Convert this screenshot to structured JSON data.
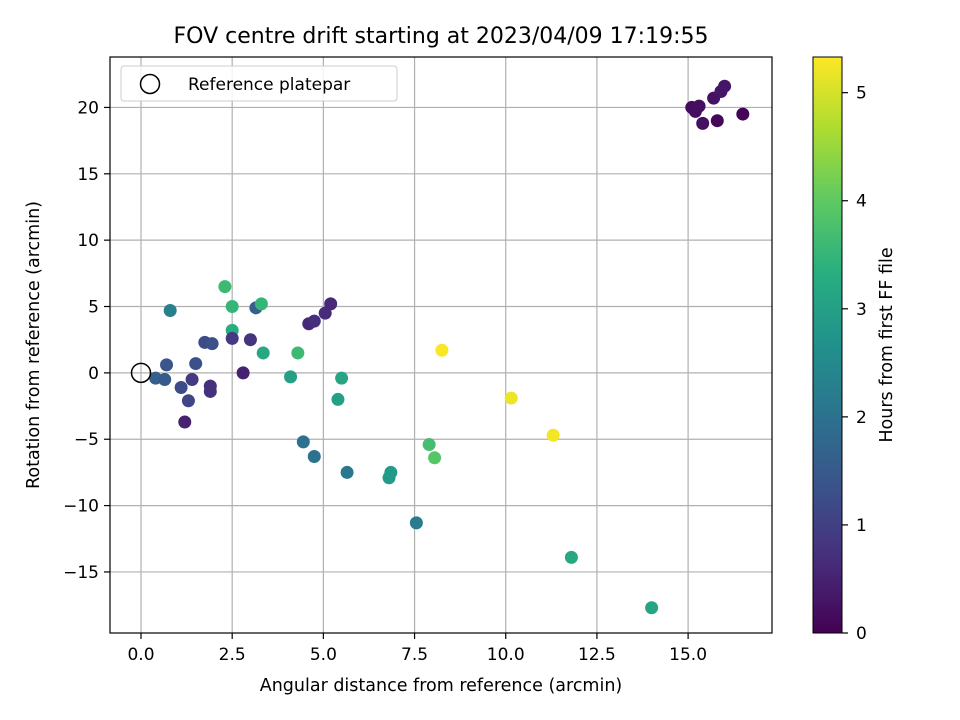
{
  "chart_data": {
    "type": "scatter",
    "title": "FOV centre drift starting at 2023/04/09 17:19:55",
    "xlabel": "Angular distance from reference (arcmin)",
    "ylabel": "Rotation from reference (arcmin)",
    "xlim": [
      -0.85,
      17.3
    ],
    "ylim": [
      -19.6,
      23.8
    ],
    "xticks": [
      0.0,
      2.5,
      5.0,
      7.5,
      10.0,
      12.5,
      15.0
    ],
    "xtick_labels": [
      "0.0",
      "2.5",
      "5.0",
      "7.5",
      "10.0",
      "12.5",
      "15.0"
    ],
    "yticks": [
      -15,
      -10,
      -5,
      0,
      5,
      10,
      15,
      20
    ],
    "ytick_labels": [
      "−15",
      "−10",
      "−5",
      "0",
      "5",
      "10",
      "15",
      "20"
    ],
    "grid": true,
    "legend": {
      "placement": "upper-left",
      "entries": [
        "Reference platepar"
      ]
    },
    "reference_point": {
      "x": 0.0,
      "y": 0.0
    },
    "colorbar": {
      "label": "Hours from first FF file",
      "colormap": "viridis",
      "range": [
        0,
        5.33
      ],
      "ticks": [
        0,
        1,
        2,
        3,
        4,
        5
      ],
      "tick_labels": [
        "0",
        "1",
        "2",
        "3",
        "4",
        "5"
      ]
    },
    "points": [
      {
        "x": 15.1,
        "y": 20.0,
        "c": 0.15
      },
      {
        "x": 15.2,
        "y": 19.7,
        "c": 0.18
      },
      {
        "x": 15.3,
        "y": 20.1,
        "c": 0.2
      },
      {
        "x": 15.4,
        "y": 18.8,
        "c": 0.22
      },
      {
        "x": 15.7,
        "y": 20.7,
        "c": 0.25
      },
      {
        "x": 15.8,
        "y": 19.0,
        "c": 0.1
      },
      {
        "x": 15.9,
        "y": 21.2,
        "c": 0.3
      },
      {
        "x": 16.0,
        "y": 21.6,
        "c": 0.32
      },
      {
        "x": 16.5,
        "y": 19.5,
        "c": 0.05
      },
      {
        "x": 0.4,
        "y": -0.4,
        "c": 1.6
      },
      {
        "x": 0.65,
        "y": -0.5,
        "c": 1.5
      },
      {
        "x": 0.7,
        "y": 0.6,
        "c": 1.4
      },
      {
        "x": 0.8,
        "y": 4.7,
        "c": 2.3
      },
      {
        "x": 1.1,
        "y": -1.1,
        "c": 1.2
      },
      {
        "x": 1.2,
        "y": -3.7,
        "c": 0.5
      },
      {
        "x": 1.3,
        "y": -2.1,
        "c": 1.1
      },
      {
        "x": 1.4,
        "y": -0.5,
        "c": 0.9
      },
      {
        "x": 1.5,
        "y": 0.7,
        "c": 1.3
      },
      {
        "x": 1.75,
        "y": 2.3,
        "c": 1.2
      },
      {
        "x": 1.9,
        "y": -1.0,
        "c": 0.7
      },
      {
        "x": 1.9,
        "y": -1.4,
        "c": 0.75
      },
      {
        "x": 1.95,
        "y": 2.2,
        "c": 1.3
      },
      {
        "x": 2.3,
        "y": 6.5,
        "c": 3.6
      },
      {
        "x": 2.5,
        "y": 5.0,
        "c": 3.5
      },
      {
        "x": 2.5,
        "y": 3.2,
        "c": 3.3
      },
      {
        "x": 2.5,
        "y": 2.6,
        "c": 0.9
      },
      {
        "x": 2.8,
        "y": 0.0,
        "c": 0.5
      },
      {
        "x": 3.0,
        "y": 2.5,
        "c": 0.8
      },
      {
        "x": 3.15,
        "y": 4.9,
        "c": 1.6
      },
      {
        "x": 3.3,
        "y": 5.2,
        "c": 3.5
      },
      {
        "x": 3.35,
        "y": 1.5,
        "c": 3.2
      },
      {
        "x": 4.1,
        "y": -0.3,
        "c": 3.0
      },
      {
        "x": 4.3,
        "y": 1.5,
        "c": 3.6
      },
      {
        "x": 4.45,
        "y": -5.2,
        "c": 2.0
      },
      {
        "x": 4.6,
        "y": 3.7,
        "c": 0.6
      },
      {
        "x": 4.75,
        "y": 3.9,
        "c": 0.7
      },
      {
        "x": 4.75,
        "y": -6.3,
        "c": 2.0
      },
      {
        "x": 5.05,
        "y": 4.5,
        "c": 0.65
      },
      {
        "x": 5.2,
        "y": 5.2,
        "c": 0.6
      },
      {
        "x": 5.4,
        "y": -2.0,
        "c": 3.0
      },
      {
        "x": 5.5,
        "y": -0.4,
        "c": 3.1
      },
      {
        "x": 5.65,
        "y": -7.5,
        "c": 2.1
      },
      {
        "x": 6.8,
        "y": -7.9,
        "c": 2.9
      },
      {
        "x": 6.85,
        "y": -7.5,
        "c": 2.9
      },
      {
        "x": 7.55,
        "y": -11.3,
        "c": 2.2
      },
      {
        "x": 7.9,
        "y": -5.4,
        "c": 3.7
      },
      {
        "x": 8.05,
        "y": -6.4,
        "c": 3.9
      },
      {
        "x": 8.25,
        "y": 1.7,
        "c": 5.3
      },
      {
        "x": 10.15,
        "y": -1.9,
        "c": 5.2
      },
      {
        "x": 11.3,
        "y": -4.7,
        "c": 5.25
      },
      {
        "x": 11.8,
        "y": -13.9,
        "c": 3.2
      },
      {
        "x": 14.0,
        "y": -17.7,
        "c": 3.1
      }
    ]
  }
}
